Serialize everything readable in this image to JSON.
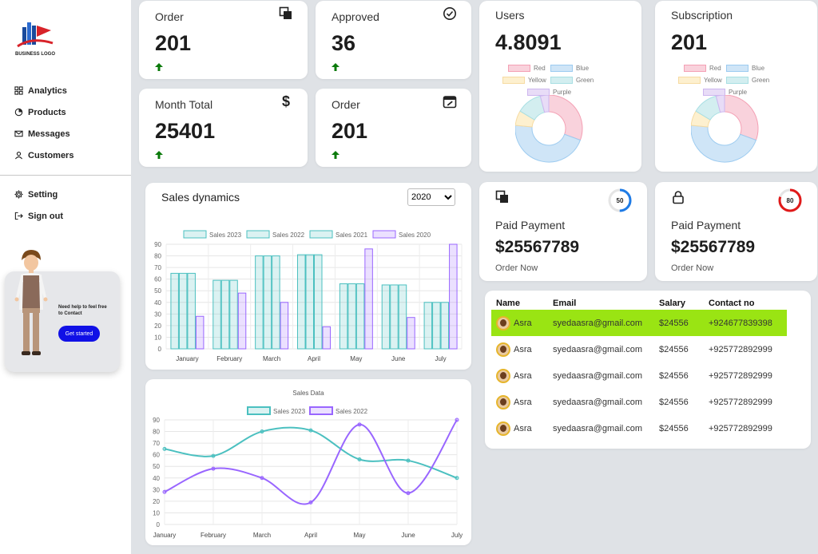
{
  "brand": {
    "logo_text": "BUSINESS LOGO"
  },
  "nav": {
    "analytics": "Analytics",
    "products": "Products",
    "messages": "Messages",
    "customers": "Customers",
    "setting": "Setting",
    "sign_out": "Sign out"
  },
  "help": {
    "text": "Need help to feel free to Contact",
    "button": "Get started"
  },
  "stats": [
    {
      "label": "Order",
      "value": "201",
      "icon": "copy-icon"
    },
    {
      "label": "Approved",
      "value": "36",
      "icon": "check-circle-icon"
    },
    {
      "label": "Month Total",
      "value": "25401",
      "icon": "dollar-icon"
    },
    {
      "label": "Order",
      "value": "201",
      "icon": "calendar-edit-icon"
    }
  ],
  "donuts": [
    {
      "title": "Users",
      "value": "4.8091"
    },
    {
      "title": "Subscription",
      "value": "201"
    }
  ],
  "donut_legend": [
    "Red",
    "Blue",
    "Yellow",
    "Green",
    "Purple"
  ],
  "payments": [
    {
      "label": "Paid Payment",
      "value": "$25567789",
      "link": "Order Now",
      "ring": "50",
      "ring_color": "#1e7be6",
      "ring_fraction": 0.5
    },
    {
      "label": "Paid Payment",
      "value": "$25567789",
      "link": "Order Now",
      "ring": "80",
      "ring_color": "#e01919",
      "ring_fraction": 0.8
    }
  ],
  "sales": {
    "title": "Sales dynamics",
    "year": "2020"
  },
  "line": {
    "title": "Sales Data"
  },
  "table": {
    "headers": [
      "Name",
      "Email",
      "Salary",
      "Contact no"
    ],
    "rows": [
      {
        "name": "Asra",
        "email": "syedaasra@gmail.com",
        "salary": "$24556",
        "contact": "+924677839398"
      },
      {
        "name": "Asra",
        "email": "syedaasra@gmail.com",
        "salary": "$24556",
        "contact": "+925772892999"
      },
      {
        "name": "Asra",
        "email": "syedaasra@gmail.com",
        "salary": "$24556",
        "contact": "+925772892999"
      },
      {
        "name": "Asra",
        "email": "syedaasra@gmail.com",
        "salary": "$24556",
        "contact": "+925772892999"
      },
      {
        "name": "Asra",
        "email": "syedaasra@gmail.com",
        "salary": "$24556",
        "contact": "+925772892999"
      }
    ]
  },
  "chart_data": [
    {
      "type": "pie",
      "categories": [
        "Red",
        "Blue",
        "Yellow",
        "Green",
        "Purple"
      ],
      "values": [
        30,
        45,
        7,
        12,
        4
      ],
      "colors": [
        "#f9d2dc",
        "#cfe5f7",
        "#fdf0cf",
        "#d3eef0",
        "#e8dcf7"
      ],
      "legend": "top"
    },
    {
      "type": "pie",
      "categories": [
        "Red",
        "Blue",
        "Yellow",
        "Green",
        "Purple"
      ],
      "values": [
        30,
        45,
        7,
        12,
        4
      ],
      "colors": [
        "#f9d2dc",
        "#cfe5f7",
        "#fdf0cf",
        "#d3eef0",
        "#e8dcf7"
      ],
      "legend": "top"
    },
    {
      "type": "bar",
      "categories": [
        "January",
        "February",
        "March",
        "April",
        "May",
        "June",
        "July"
      ],
      "series": [
        {
          "name": "Sales 2023",
          "values": [
            65,
            59,
            80,
            81,
            56,
            55,
            40
          ]
        },
        {
          "name": "Sales 2022",
          "values": [
            65,
            59,
            80,
            81,
            56,
            55,
            40
          ]
        },
        {
          "name": "Sales 2021",
          "values": [
            65,
            59,
            80,
            81,
            56,
            55,
            40
          ]
        },
        {
          "name": "Sales 2020",
          "values": [
            28,
            48,
            40,
            19,
            86,
            27,
            90
          ]
        }
      ],
      "colors": [
        "#4bc0c0",
        "#4bc0c0",
        "#4bc0c0",
        "#9966ff"
      ],
      "ylim": [
        0,
        90
      ],
      "yticks": [
        0,
        10,
        20,
        30,
        40,
        50,
        60,
        70,
        80,
        90
      ],
      "grid": true,
      "legend": "top"
    },
    {
      "type": "line",
      "title": "Sales Data",
      "categories": [
        "January",
        "February",
        "March",
        "April",
        "May",
        "June",
        "July"
      ],
      "series": [
        {
          "name": "Sales 2023",
          "values": [
            65,
            59,
            80,
            81,
            56,
            55,
            40
          ],
          "color": "#4bc0c0"
        },
        {
          "name": "Sales 2022",
          "values": [
            28,
            48,
            40,
            19,
            86,
            27,
            90
          ],
          "color": "#9966ff"
        }
      ],
      "ylim": [
        0,
        90
      ],
      "yticks": [
        0,
        10,
        20,
        30,
        40,
        50,
        60,
        70,
        80,
        90
      ],
      "grid": true,
      "legend": "top"
    }
  ]
}
